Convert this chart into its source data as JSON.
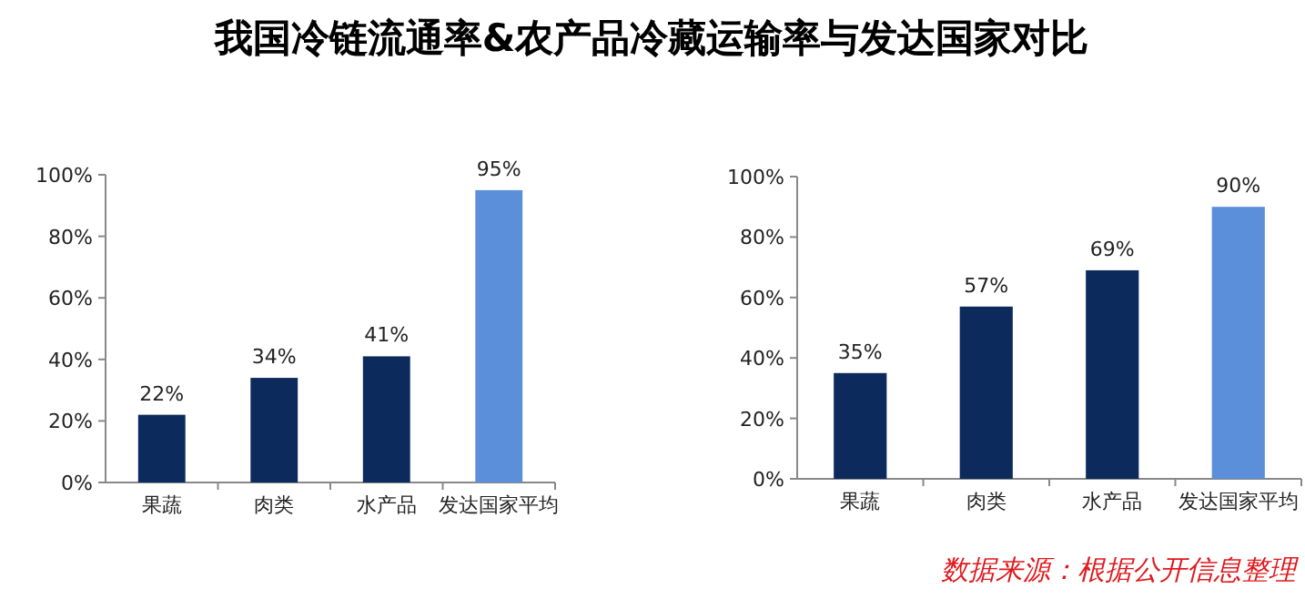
{
  "chart_data": [
    {
      "type": "bar",
      "title": "我国冷链流通率&农产品冷藏运输率与发达国家对比",
      "categories": [
        "果蔬",
        "肉类",
        "水产品",
        "发达国家平均"
      ],
      "values": [
        22,
        34,
        41,
        95
      ],
      "colors": [
        "#0d2a5c",
        "#0d2a5c",
        "#0d2a5c",
        "#5b8fd9"
      ],
      "value_labels": [
        "22%",
        "34%",
        "41%",
        "95%"
      ],
      "ylim": [
        0,
        100
      ],
      "yticks": [
        {
          "value": 0,
          "label": "0%"
        },
        {
          "value": 20,
          "label": "20%"
        },
        {
          "value": 40,
          "label": "40%"
        },
        {
          "value": 60,
          "label": "60%"
        },
        {
          "value": 80,
          "label": "80%"
        },
        {
          "value": 100,
          "label": "100%"
        }
      ],
      "grid": false
    },
    {
      "type": "bar",
      "categories": [
        "果蔬",
        "肉类",
        "水产品",
        "发达国家平均"
      ],
      "values": [
        35,
        57,
        69,
        90
      ],
      "colors": [
        "#0d2a5c",
        "#0d2a5c",
        "#0d2a5c",
        "#5b8fd9"
      ],
      "value_labels": [
        "35%",
        "57%",
        "69%",
        "90%"
      ],
      "ylim": [
        0,
        100
      ],
      "yticks": [
        {
          "value": 0,
          "label": "0%"
        },
        {
          "value": 20,
          "label": "20%"
        },
        {
          "value": 40,
          "label": "40%"
        },
        {
          "value": 60,
          "label": "60%"
        },
        {
          "value": 80,
          "label": "80%"
        },
        {
          "value": 100,
          "label": "100%"
        }
      ],
      "grid": false,
      "annotations": [
        "数据来源：根据公开信息整理"
      ]
    }
  ]
}
